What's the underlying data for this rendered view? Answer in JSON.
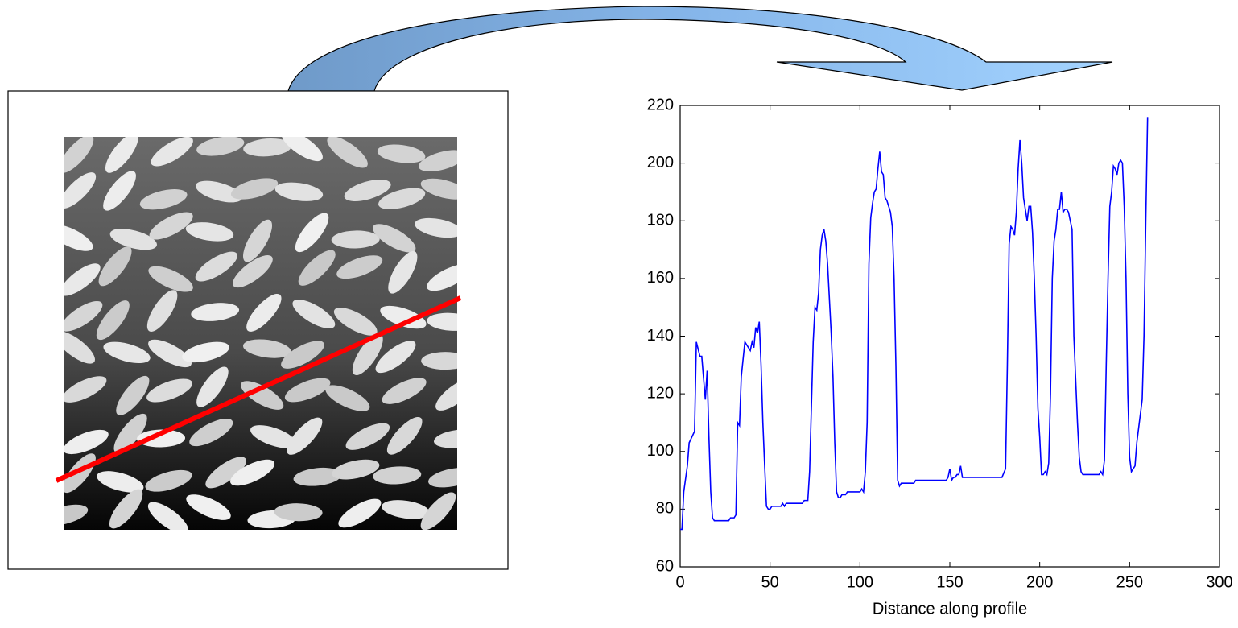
{
  "chart_data": {
    "type": "line",
    "xlabel": "Distance along profile",
    "xlim": [
      0,
      300
    ],
    "xticks": [
      0,
      50,
      100,
      150,
      200,
      250,
      300
    ],
    "ylim": [
      60,
      220
    ],
    "yticks": [
      60,
      80,
      100,
      120,
      140,
      160,
      180,
      200,
      220
    ],
    "grid": false,
    "series": [
      {
        "color": "#0000ff",
        "x": [
          0,
          1,
          2,
          4,
          5,
          8,
          9,
          11,
          12,
          14,
          15,
          16,
          17,
          18,
          19,
          25,
          27,
          28,
          30,
          31,
          32,
          33,
          34,
          36,
          38,
          39,
          40,
          41,
          42,
          43,
          44,
          45,
          46,
          47,
          48,
          49,
          50,
          51,
          56,
          57,
          58,
          59,
          65,
          68,
          69,
          71,
          72,
          74,
          75,
          76,
          77,
          78,
          79,
          80,
          81,
          82,
          84,
          85,
          86,
          87,
          88,
          89,
          90,
          92,
          93,
          100,
          101,
          102,
          103,
          104,
          105,
          106,
          107,
          108,
          109,
          110,
          111,
          112,
          113,
          114,
          115,
          117,
          118,
          119,
          120,
          121,
          122,
          123,
          130,
          131,
          135,
          145,
          148,
          149,
          150,
          151,
          152,
          153,
          154,
          155,
          156,
          157,
          165,
          175,
          179,
          181,
          182,
          183,
          184,
          185,
          186,
          187,
          188,
          189,
          190,
          191,
          192,
          193,
          194,
          195,
          196,
          197,
          198,
          199,
          200,
          201,
          202,
          203,
          204,
          205,
          206,
          207,
          208,
          209,
          210,
          211,
          212,
          213,
          214,
          215,
          216,
          217,
          218,
          219,
          220,
          221,
          222,
          223,
          224,
          230,
          233,
          234,
          235,
          236,
          237,
          238,
          239,
          240,
          241,
          242,
          243,
          244,
          245,
          246,
          247,
          248,
          249,
          250,
          251,
          252,
          253,
          254,
          256,
          257,
          258,
          259,
          260
        ],
        "values": [
          73,
          73,
          86,
          95,
          103,
          107,
          138,
          133,
          133,
          118,
          128,
          105,
          86,
          77,
          76,
          76,
          76,
          77,
          77,
          78,
          110,
          109,
          126,
          138,
          136,
          135,
          138,
          136,
          143,
          141,
          145,
          130,
          110,
          95,
          81,
          80,
          80,
          81,
          81,
          82,
          81,
          82,
          82,
          82,
          83,
          83,
          93,
          138,
          150,
          149,
          155,
          170,
          175,
          177,
          173,
          165,
          141,
          126,
          103,
          86,
          84,
          84,
          85,
          85,
          86,
          86,
          87,
          86,
          93,
          110,
          165,
          181,
          186,
          190,
          191,
          198,
          204,
          197,
          196,
          188,
          187,
          183,
          178,
          160,
          130,
          90,
          88,
          89,
          89,
          90,
          90,
          90,
          90,
          91,
          94,
          90,
          91,
          91,
          92,
          92,
          95,
          91,
          91,
          91,
          91,
          94,
          130,
          172,
          178,
          177,
          175,
          183,
          198,
          208,
          200,
          188,
          184,
          180,
          185,
          185,
          176,
          160,
          140,
          115,
          105,
          92,
          92,
          93,
          92,
          96,
          120,
          160,
          173,
          177,
          184,
          184,
          190,
          183,
          184,
          184,
          183,
          180,
          177,
          140,
          125,
          110,
          98,
          93,
          92,
          92,
          92,
          93,
          92,
          97,
          130,
          160,
          185,
          190,
          199,
          198,
          196,
          200,
          201,
          200,
          185,
          160,
          120,
          98,
          93,
          94,
          95,
          103,
          113,
          118,
          140,
          180,
          216
        ]
      }
    ]
  }
}
